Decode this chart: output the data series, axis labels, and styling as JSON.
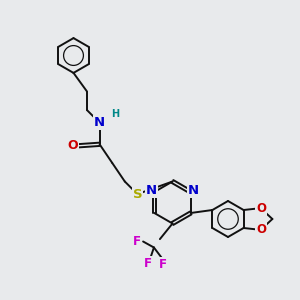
{
  "background_color": "#e8eaec",
  "figsize": [
    3.0,
    3.0
  ],
  "dpi": 100,
  "atom_colors": {
    "C": "#000000",
    "N": "#0000cc",
    "O": "#cc0000",
    "S": "#aaaa00",
    "F": "#cc00cc",
    "H": "#008888"
  },
  "bond_color": "#111111",
  "bond_width": 1.4,
  "font_size": 8.5
}
